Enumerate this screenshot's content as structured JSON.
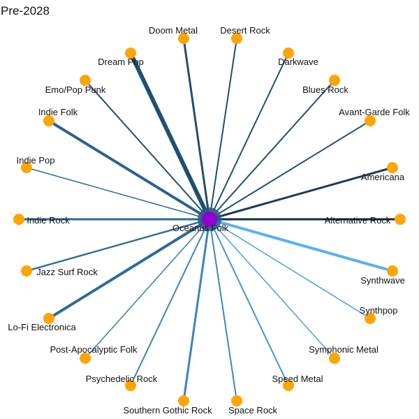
{
  "title": "Pre-2028",
  "center": {
    "label": "Oceanus Folk",
    "color": "#9400d3"
  },
  "leaf_color": "#ffa500",
  "nodes": [
    {
      "label": "Doom Metal",
      "edge_color": "#1f4f74",
      "edge_width": 3.0
    },
    {
      "label": "Desert Rock",
      "edge_color": "#1f4f74",
      "edge_width": 2.0
    },
    {
      "label": "Darkwave",
      "edge_color": "#1f4f74",
      "edge_width": 2.0
    },
    {
      "label": "Blues Rock",
      "edge_color": "#1f4f74",
      "edge_width": 2.0
    },
    {
      "label": "Avant-Garde Folk",
      "edge_color": "#1f4f74",
      "edge_width": 2.0
    },
    {
      "label": "Americana",
      "edge_color": "#1a3a56",
      "edge_width": 3.0
    },
    {
      "label": "Alternative Rock",
      "edge_color": "#13293d",
      "edge_width": 3.0
    },
    {
      "label": "Synthwave",
      "edge_color": "#56b1f7",
      "edge_width": 4.0
    },
    {
      "label": "Synthpop",
      "edge_color": "#4a9ee0",
      "edge_width": 1.5
    },
    {
      "label": "Symphonic Metal",
      "edge_color": "#4a9ee0",
      "edge_width": 1.5
    },
    {
      "label": "Speed Metal",
      "edge_color": "#4294d2",
      "edge_width": 2.0
    },
    {
      "label": "Space Rock",
      "edge_color": "#3c88c4",
      "edge_width": 2.0
    },
    {
      "label": "Southern Gothic Rock",
      "edge_color": "#3a83bd",
      "edge_width": 3.0
    },
    {
      "label": "Psychedelic Rock",
      "edge_color": "#3a83bd",
      "edge_width": 2.0
    },
    {
      "label": "Post-Apocalyptic Folk",
      "edge_color": "#377db5",
      "edge_width": 1.5
    },
    {
      "label": "Lo-Fi Electronica",
      "edge_color": "#2f6a99",
      "edge_width": 4.0
    },
    {
      "label": "Jazz Surf Rock",
      "edge_color": "#336f9f",
      "edge_width": 2.5
    },
    {
      "label": "Indie Rock",
      "edge_color": "#2f6b9b",
      "edge_width": 3.0
    },
    {
      "label": "Indie Pop",
      "edge_color": "#2f6b9b",
      "edge_width": 1.5
    },
    {
      "label": "Indie Folk",
      "edge_color": "#2b6190",
      "edge_width": 4.0
    },
    {
      "label": "Emo/Pop Punk",
      "edge_color": "#1f4f74",
      "edge_width": 2.0
    },
    {
      "label": "Dream Pop",
      "edge_color": "#1f4f74",
      "edge_width": 6.0
    }
  ]
}
